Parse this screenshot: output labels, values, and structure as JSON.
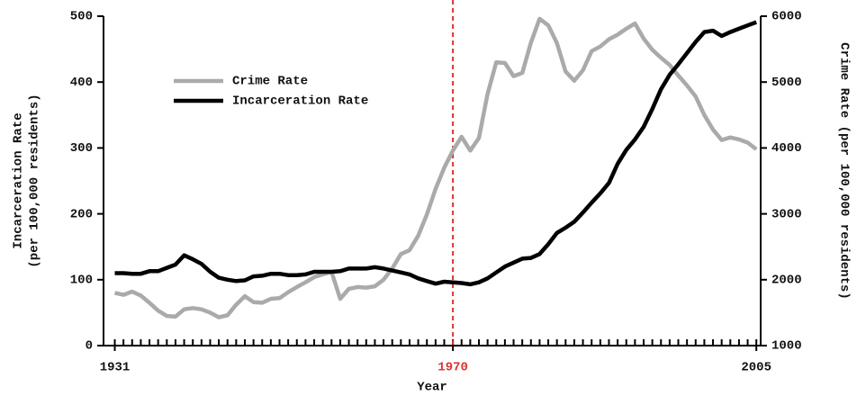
{
  "chart_data": {
    "type": "line",
    "xlabel": "Year",
    "ylabel": [
      "Incarceration Rate",
      "(per 100,000 residents)"
    ],
    "y2label": "Crime Rate (per 100,000 residents)",
    "x": [
      1931,
      1932,
      1933,
      1934,
      1935,
      1936,
      1937,
      1938,
      1939,
      1940,
      1941,
      1942,
      1943,
      1944,
      1945,
      1946,
      1947,
      1948,
      1949,
      1950,
      1951,
      1952,
      1953,
      1954,
      1955,
      1956,
      1957,
      1958,
      1959,
      1960,
      1961,
      1962,
      1963,
      1964,
      1965,
      1966,
      1967,
      1968,
      1969,
      1970,
      1971,
      1972,
      1973,
      1974,
      1975,
      1976,
      1977,
      1978,
      1979,
      1980,
      1981,
      1982,
      1983,
      1984,
      1985,
      1986,
      1987,
      1988,
      1989,
      1990,
      1991,
      1992,
      1993,
      1994,
      1995,
      1996,
      1997,
      1998,
      1999,
      2000,
      2001,
      2002,
      2003,
      2004,
      2005
    ],
    "series": [
      {
        "name": "Crime Rate",
        "color": "#aaaaaa",
        "axis": "y2",
        "values": [
          1800,
          1770,
          1820,
          1760,
          1650,
          1530,
          1450,
          1440,
          1550,
          1570,
          1550,
          1500,
          1430,
          1460,
          1620,
          1750,
          1660,
          1650,
          1710,
          1720,
          1810,
          1890,
          1960,
          2040,
          2080,
          2120,
          1710,
          1860,
          1890,
          1880,
          1900,
          2000,
          2170,
          2390,
          2450,
          2670,
          2990,
          3380,
          3700,
          3960,
          4170,
          3960,
          4150,
          4820,
          5300,
          5290,
          5090,
          5140,
          5600,
          5960,
          5860,
          5590,
          5160,
          5020,
          5180,
          5470,
          5540,
          5650,
          5720,
          5810,
          5890,
          5660,
          5490,
          5370,
          5260,
          5100,
          4950,
          4780,
          4500,
          4280,
          4120,
          4160,
          4130,
          4080,
          3980
        ]
      },
      {
        "name": "Incarceration Rate",
        "color": "#000000",
        "values": [
          110,
          110,
          109,
          109,
          113,
          113,
          118,
          123,
          137,
          131,
          124,
          112,
          103,
          100,
          98,
          99,
          105,
          106,
          109,
          109,
          107,
          107,
          108,
          112,
          112,
          112,
          113,
          117,
          117,
          117,
          119,
          117,
          114,
          111,
          108,
          102,
          98,
          94,
          97,
          96,
          95,
          93,
          96,
          102,
          111,
          120,
          126,
          132,
          133,
          139,
          154,
          171,
          179,
          188,
          202,
          217,
          231,
          247,
          276,
          297,
          313,
          332,
          359,
          389,
          411,
          427,
          444,
          461,
          476,
          478,
          470,
          476,
          481,
          486,
          491
        ]
      }
    ],
    "xlim": [
      1929.7,
      2005.5
    ],
    "xticks": [
      1931,
      1970,
      2005
    ],
    "ylim": [
      0,
      500
    ],
    "yticks": [
      0,
      100,
      200,
      300,
      400,
      500
    ],
    "y2lim": [
      1000,
      6000
    ],
    "y2ticks": [
      1000,
      2000,
      3000,
      4000,
      5000,
      6000
    ],
    "vline": {
      "x": 1970,
      "color": "#e03030"
    },
    "legend": "upper left",
    "grid": false
  }
}
